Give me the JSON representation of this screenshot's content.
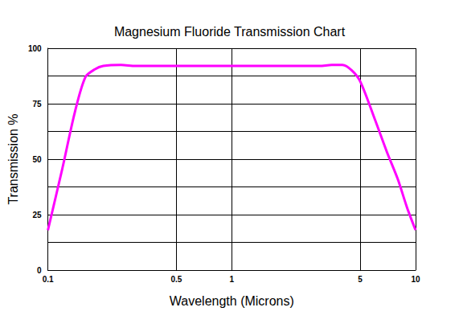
{
  "chart_data": {
    "type": "line",
    "title": "Magnesium Fluoride Transmission Chart",
    "x_label": "Wavelength (Microns)",
    "y_label": "Transmission %",
    "x": [
      0.1,
      0.12,
      0.14,
      0.16,
      0.18,
      0.2,
      0.25,
      0.3,
      1,
      3,
      3.5,
      4,
      4.5,
      5,
      6,
      7,
      8,
      9,
      10
    ],
    "values": [
      18,
      46,
      71,
      87,
      90.5,
      92,
      92.5,
      92,
      92,
      92,
      92.5,
      92.5,
      90,
      85,
      68,
      53,
      41,
      28,
      18
    ],
    "color": "#ff00ff",
    "line_style": "solid",
    "xlim": [
      0.1,
      10
    ],
    "xticks": [
      0.1,
      0.5,
      1,
      5,
      10
    ],
    "ylim": [
      0,
      100
    ],
    "yticks": [
      0,
      25,
      50,
      75,
      100
    ],
    "log": "x",
    "grid": true
  }
}
